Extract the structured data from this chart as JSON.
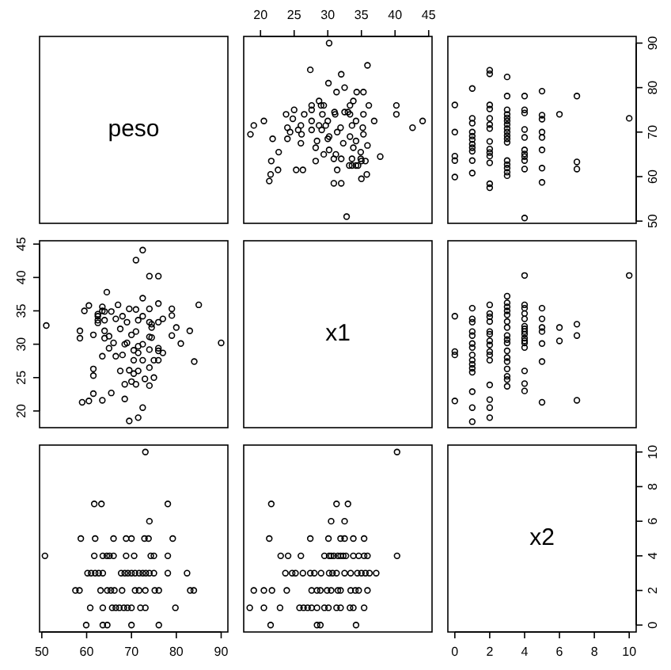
{
  "chart_data": [
    {
      "type": "other",
      "title": "peso"
    },
    {
      "type": "scatter",
      "xlim": [
        17.5,
        45.5
      ],
      "xticks": [
        20,
        25,
        30,
        35,
        40,
        45
      ],
      "ylim": [
        49.5,
        91.5
      ],
      "tick_labels": "x",
      "marker": "circle",
      "series": [
        {
          "color": "#000000",
          "x": [
            30.2,
            35.9,
            27.4,
            32,
            30.1,
            32.5,
            31.3,
            34.3,
            35.3,
            28.7,
            33.8,
            29,
            29.4,
            27.6,
            33.3,
            36.1,
            40.2,
            27.6,
            31,
            32.5,
            33,
            25,
            23.8,
            26.5,
            29.2,
            31.1,
            33.3,
            35.3,
            40.2,
            20.5,
            24.8,
            27.6,
            30,
            34.2,
            36.9,
            44.1,
            19,
            24,
            26,
            28.7,
            29.7,
            31.9,
            33.6,
            35.2,
            42.6,
            25.6,
            27.6,
            29.1,
            18.5,
            24.4,
            26.1,
            30.2,
            31.4,
            33.3,
            35.3,
            21.8,
            24,
            26,
            28.4,
            30,
            32.3,
            34.2,
            28.2,
            30.2,
            33.8,
            35.9,
            22.7,
            29.4,
            31.2,
            34.9,
            37.8,
            30.9,
            32,
            33.6,
            34.9,
            21.6,
            28.2,
            35,
            35.6,
            33.2,
            33.6,
            34.2,
            34.5,
            31.4,
            22.6,
            25.3,
            26.3,
            21.5,
            35.8,
            21.3,
            35,
            30.9,
            32,
            32.8
          ],
          "values": [
            90,
            85,
            84,
            83,
            81,
            80,
            79,
            79,
            79,
            77,
            77,
            76,
            76,
            76,
            76,
            76,
            76,
            75,
            74.5,
            74.5,
            74.5,
            75,
            74,
            74,
            74,
            74,
            74,
            74,
            74,
            72.5,
            73,
            72.5,
            72.5,
            72.5,
            72.5,
            72.5,
            71.5,
            71,
            71.5,
            71.5,
            71.5,
            71,
            71.5,
            71,
            71,
            70.5,
            70.5,
            70.5,
            69.5,
            70,
            69.5,
            69,
            70,
            69,
            69.5,
            68.5,
            68.5,
            67.5,
            68,
            68.5,
            67.5,
            68,
            66.5,
            66,
            66.5,
            67,
            65.5,
            65,
            65,
            65.5,
            64.5,
            64,
            64,
            64,
            64,
            63.5,
            63.5,
            63.5,
            63.5,
            62.5,
            62.5,
            62.5,
            62.5,
            61.5,
            61.5,
            61.5,
            61.5,
            60.5,
            60.5,
            59,
            59.5,
            58.5,
            58.5,
            51
          ]
        }
      ]
    },
    {
      "type": "scatter",
      "xlim": [
        -0.4,
        10.4
      ],
      "ylim": [
        49.5,
        91.5
      ],
      "yticks": [
        50,
        60,
        70,
        80,
        90
      ],
      "tick_labels": "y",
      "marker": "circle",
      "series": [
        {
          "color": "#000000",
          "x": [
            10,
            7,
            7,
            7,
            6,
            5,
            5,
            5,
            5,
            5,
            5,
            5,
            5,
            4,
            4,
            4,
            4,
            4,
            4,
            4,
            4,
            4,
            4,
            4,
            3,
            3,
            3,
            3,
            3,
            3,
            3,
            3,
            3,
            3,
            3,
            3,
            3,
            3,
            3,
            3,
            3,
            2,
            2,
            2,
            2,
            2,
            2,
            2,
            2,
            2,
            2,
            2,
            2,
            2,
            2,
            1,
            1,
            1,
            1,
            1,
            1,
            1,
            1,
            1,
            1,
            1,
            0,
            0,
            0,
            0,
            0
          ],
          "values": [
            73.1,
            61.7,
            63.3,
            78.1,
            74,
            58.7,
            61.9,
            66,
            68.8,
            70,
            72.9,
            73.8,
            79.2,
            50.7,
            61.7,
            63.6,
            64.5,
            65.1,
            66,
            68.8,
            70.6,
            74.3,
            75,
            78.1,
            60.2,
            61,
            61.9,
            62.7,
            63.6,
            67.7,
            68.5,
            69.2,
            70,
            70.8,
            71.7,
            72.5,
            73.2,
            74,
            75,
            78.1,
            82.4,
            57.5,
            58.4,
            63.1,
            64.6,
            65.4,
            66.2,
            67.9,
            70.8,
            71.7,
            73.1,
            75.2,
            76.1,
            83.1,
            83.9,
            60.8,
            63.6,
            65.7,
            66.5,
            67.3,
            68.3,
            69.1,
            70,
            72,
            73.1,
            79.8,
            59.9,
            63.6,
            64.6,
            70,
            76.1
          ]
        }
      ]
    },
    {
      "type": "scatter",
      "xlim": [
        49.5,
        91.5
      ],
      "ylim": [
        17.5,
        45.5
      ],
      "yticks": [
        20,
        25,
        30,
        35,
        40,
        45
      ],
      "tick_labels": "y",
      "marker": "circle",
      "series": [
        {
          "color": "#000000",
          "x": [
            90,
            85,
            84,
            83,
            81,
            80,
            79,
            79,
            79,
            77,
            77,
            76,
            76,
            76,
            76,
            76,
            76,
            75,
            74.5,
            74.5,
            74.5,
            75,
            74,
            74,
            74,
            74,
            74,
            74,
            74,
            72.5,
            73,
            72.5,
            72.5,
            72.5,
            72.5,
            72.5,
            71.5,
            71,
            71.5,
            71.5,
            71.5,
            71,
            71.5,
            71,
            71,
            70.5,
            70.5,
            70.5,
            69.5,
            70,
            69.5,
            69,
            70,
            69,
            69.5,
            68.5,
            68.5,
            67.5,
            68,
            68.5,
            67.5,
            68,
            66.5,
            66,
            66.5,
            67,
            65.5,
            65,
            65,
            65.5,
            64.5,
            64,
            64,
            64,
            64,
            63.5,
            63.5,
            63.5,
            63.5,
            62.5,
            62.5,
            62.5,
            62.5,
            61.5,
            61.5,
            61.5,
            61.5,
            60.5,
            60.5,
            59,
            59.5,
            58.5,
            58.5,
            51
          ],
          "values": [
            30.2,
            35.9,
            27.4,
            32,
            30.1,
            32.5,
            31.3,
            34.3,
            35.3,
            28.7,
            33.8,
            29,
            29.4,
            27.6,
            33.3,
            36.1,
            40.2,
            27.6,
            31,
            32.5,
            33,
            25,
            23.8,
            26.5,
            29.2,
            31.1,
            33.3,
            35.3,
            40.2,
            20.5,
            24.8,
            27.6,
            30,
            34.2,
            36.9,
            44.1,
            19,
            24,
            26,
            28.7,
            29.7,
            31.9,
            33.6,
            35.2,
            42.6,
            25.6,
            27.6,
            29.1,
            18.5,
            24.4,
            26.1,
            30.2,
            31.4,
            33.3,
            35.3,
            21.8,
            24,
            26,
            28.4,
            30,
            32.3,
            34.2,
            28.2,
            30.2,
            33.8,
            35.9,
            22.7,
            29.4,
            31.2,
            34.9,
            37.8,
            30.9,
            32,
            33.6,
            34.9,
            21.6,
            28.2,
            35,
            35.6,
            33.2,
            33.6,
            34.2,
            34.5,
            31.4,
            22.6,
            25.3,
            26.3,
            21.5,
            35.8,
            21.3,
            35,
            30.9,
            32,
            32.8
          ]
        }
      ]
    },
    {
      "type": "other",
      "title": "x1"
    },
    {
      "type": "scatter",
      "xlim": [
        -0.4,
        10.4
      ],
      "ylim": [
        17.5,
        45.5
      ],
      "tick_labels": false,
      "marker": "circle",
      "series": [
        {
          "color": "#000000",
          "x": [
            10,
            7,
            7,
            7,
            6,
            6,
            5,
            5,
            5,
            5,
            5,
            5,
            5,
            4,
            4,
            4,
            4,
            4,
            4,
            4,
            4,
            4,
            4,
            4,
            4,
            4,
            4,
            4,
            4,
            3,
            3,
            3,
            3,
            3,
            3,
            3,
            3,
            3,
            3,
            3,
            3,
            3,
            3,
            3,
            3,
            3,
            2,
            2,
            2,
            2,
            2,
            2,
            2,
            2,
            2,
            2,
            2,
            2,
            2,
            2,
            2,
            1,
            1,
            1,
            1,
            1,
            1,
            1,
            1,
            1,
            1,
            1,
            1,
            1,
            1,
            1,
            0,
            0,
            0,
            0
          ],
          "values": [
            40.3,
            21.6,
            31.3,
            33,
            30.5,
            32.5,
            21.3,
            27.4,
            30.1,
            31.9,
            32.5,
            33.8,
            35.4,
            23,
            24.1,
            26,
            29.5,
            30.2,
            30.5,
            30.9,
            31.5,
            31.9,
            32.3,
            32.7,
            33.8,
            34.6,
            35.4,
            35.9,
            40.3,
            23.7,
            24.7,
            25.2,
            26.3,
            27.4,
            28,
            29,
            30.2,
            30.7,
            31.3,
            32.5,
            33.4,
            34.4,
            35,
            35.6,
            36.2,
            37.2,
            19,
            20.5,
            21.7,
            23.9,
            27.6,
            28.4,
            28.9,
            29.9,
            30.5,
            31.5,
            31.9,
            33.4,
            34.1,
            34.6,
            35.9,
            18.4,
            20.5,
            22.9,
            25.8,
            26.4,
            27,
            27.6,
            28.4,
            29.5,
            30.1,
            31.3,
            31.9,
            33.3,
            33.8,
            35.4,
            21.5,
            28.4,
            28.9,
            34.2
          ]
        }
      ]
    },
    {
      "type": "scatter",
      "xlim": [
        49.5,
        91.5
      ],
      "ylim": [
        -0.4,
        10.4
      ],
      "xticks": [
        50,
        60,
        70,
        80,
        90
      ],
      "tick_labels": "x",
      "marker": "circle",
      "series": [
        {
          "color": "#000000",
          "x": [
            73.1,
            61.7,
            63.3,
            78.1,
            74,
            58.7,
            61.9,
            66,
            68.8,
            70,
            72.9,
            73.8,
            79.2,
            50.7,
            61.7,
            63.6,
            64.5,
            65.1,
            66,
            68.8,
            70.6,
            74.3,
            75,
            78.1,
            60.2,
            61,
            61.9,
            62.7,
            63.6,
            67.7,
            68.5,
            69.2,
            70,
            70.8,
            71.7,
            72.5,
            73.2,
            74,
            75,
            78.1,
            82.4,
            57.5,
            58.4,
            63.1,
            64.6,
            65.4,
            66.2,
            67.9,
            70.8,
            71.7,
            73.1,
            75.2,
            76.1,
            83.1,
            83.9,
            60.8,
            63.6,
            65.7,
            66.5,
            67.3,
            68.3,
            69.1,
            70,
            72,
            73.1,
            79.8,
            59.9,
            63.6,
            64.6,
            70,
            76.1
          ],
          "values": [
            10,
            7,
            7,
            7,
            6,
            5,
            5,
            5,
            5,
            5,
            5,
            5,
            5,
            4,
            4,
            4,
            4,
            4,
            4,
            4,
            4,
            4,
            4,
            4,
            3,
            3,
            3,
            3,
            3,
            3,
            3,
            3,
            3,
            3,
            3,
            3,
            3,
            3,
            3,
            3,
            3,
            2,
            2,
            2,
            2,
            2,
            2,
            2,
            2,
            2,
            2,
            2,
            2,
            2,
            2,
            1,
            1,
            1,
            1,
            1,
            1,
            1,
            1,
            1,
            1,
            1,
            0,
            0,
            0,
            0,
            0
          ]
        }
      ]
    },
    {
      "type": "scatter",
      "xlim": [
        17.5,
        45.5
      ],
      "ylim": [
        -0.4,
        10.4
      ],
      "tick_labels": false,
      "marker": "circle",
      "series": [
        {
          "color": "#000000",
          "x": [
            40.3,
            21.6,
            31.3,
            33,
            30.5,
            32.5,
            21.3,
            27.4,
            30.1,
            31.9,
            32.5,
            33.8,
            35.4,
            23,
            24.1,
            26,
            29.5,
            30.2,
            30.5,
            30.9,
            31.5,
            31.9,
            32.3,
            32.7,
            33.8,
            34.6,
            35.4,
            35.9,
            40.3,
            23.7,
            24.7,
            25.2,
            26.3,
            27.4,
            28,
            29,
            30.2,
            30.7,
            31.3,
            32.5,
            33.4,
            34.4,
            35,
            35.6,
            36.2,
            37.2,
            19,
            20.5,
            21.7,
            23.9,
            27.6,
            28.4,
            28.9,
            29.9,
            30.5,
            31.5,
            31.9,
            33.4,
            34.1,
            34.6,
            35.9,
            18.4,
            20.5,
            22.9,
            25.8,
            26.4,
            27,
            27.6,
            28.4,
            29.5,
            30.1,
            31.3,
            31.9,
            33.3,
            33.8,
            35.4,
            21.5,
            28.4,
            28.9,
            34.2
          ],
          "values": [
            10,
            7,
            7,
            7,
            6,
            6,
            5,
            5,
            5,
            5,
            5,
            5,
            5,
            4,
            4,
            4,
            4,
            4,
            4,
            4,
            4,
            4,
            4,
            4,
            4,
            4,
            4,
            4,
            4,
            3,
            3,
            3,
            3,
            3,
            3,
            3,
            3,
            3,
            3,
            3,
            3,
            3,
            3,
            3,
            3,
            3,
            2,
            2,
            2,
            2,
            2,
            2,
            2,
            2,
            2,
            2,
            2,
            2,
            2,
            2,
            2,
            1,
            1,
            1,
            1,
            1,
            1,
            1,
            1,
            1,
            1,
            1,
            1,
            1,
            1,
            1,
            0,
            0,
            0,
            0
          ]
        }
      ]
    },
    {
      "type": "scatter",
      "title": "x2",
      "xlim": [
        -0.4,
        10.4
      ],
      "xticks": [
        0,
        2,
        4,
        6,
        8,
        10
      ],
      "ylim": [
        -0.4,
        10.4
      ],
      "yticks": [
        0,
        2,
        4,
        6,
        8,
        10
      ]
    }
  ]
}
